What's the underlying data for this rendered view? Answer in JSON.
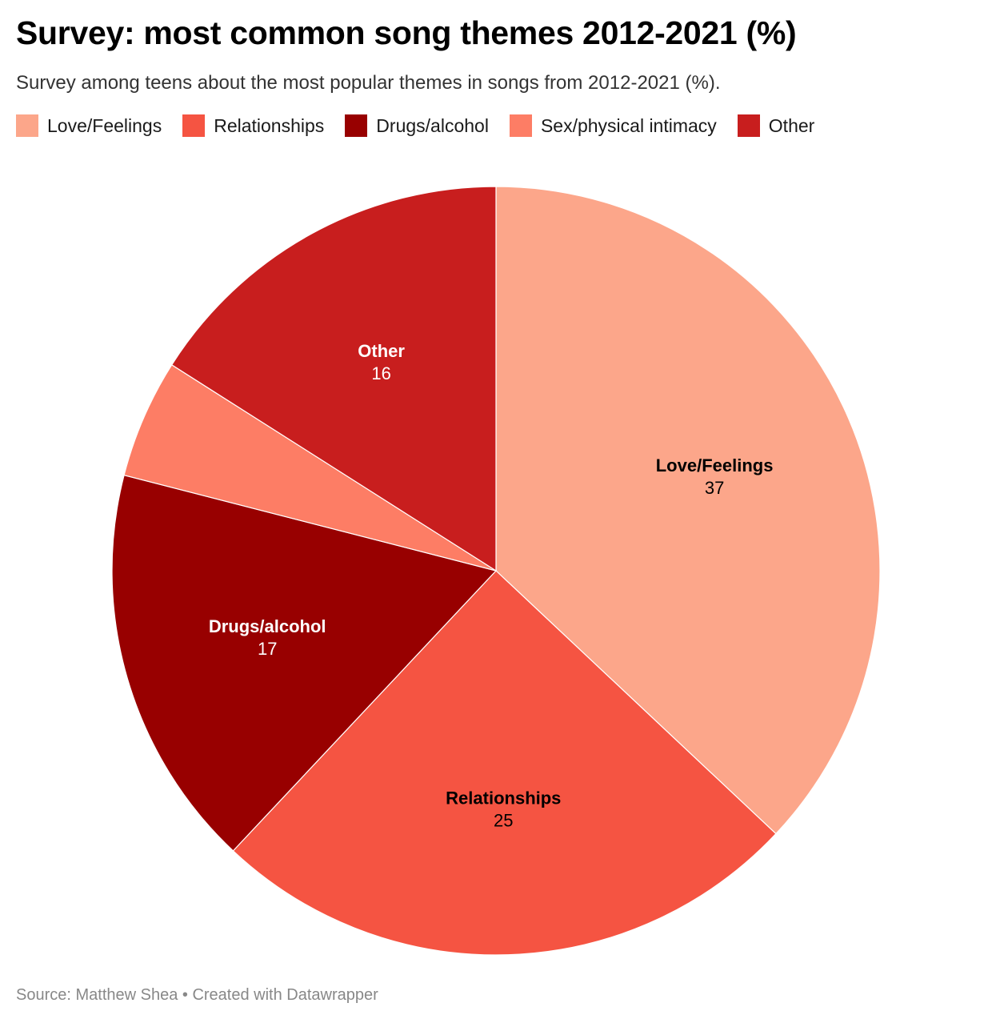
{
  "header": {
    "title": "Survey: most common song themes 2012-2021 (%)",
    "subtitle": "Survey among teens about the most popular themes in songs from 2012-2021 (%)."
  },
  "footer": {
    "source": "Source: Matthew Shea • Created with Datawrapper"
  },
  "chart_data": {
    "type": "pie",
    "title": "Survey: most common song themes 2012-2021 (%)",
    "legend_position": "top",
    "slices": [
      {
        "label": "Love/Feelings",
        "value": 37,
        "color": "#fca68a",
        "show_label": true,
        "text_color": "#000000"
      },
      {
        "label": "Relationships",
        "value": 25,
        "color": "#f55442",
        "show_label": true,
        "text_color": "#000000"
      },
      {
        "label": "Drugs/alcohol",
        "value": 17,
        "color": "#980000",
        "show_label": true,
        "text_color": "#ffffff"
      },
      {
        "label": "Sex/physical intimacy",
        "value": 5,
        "color": "#fd7d65",
        "show_label": false,
        "text_color": "#000000"
      },
      {
        "label": "Other",
        "value": 16,
        "color": "#c81e1e",
        "show_label": true,
        "text_color": "#ffffff"
      }
    ]
  }
}
